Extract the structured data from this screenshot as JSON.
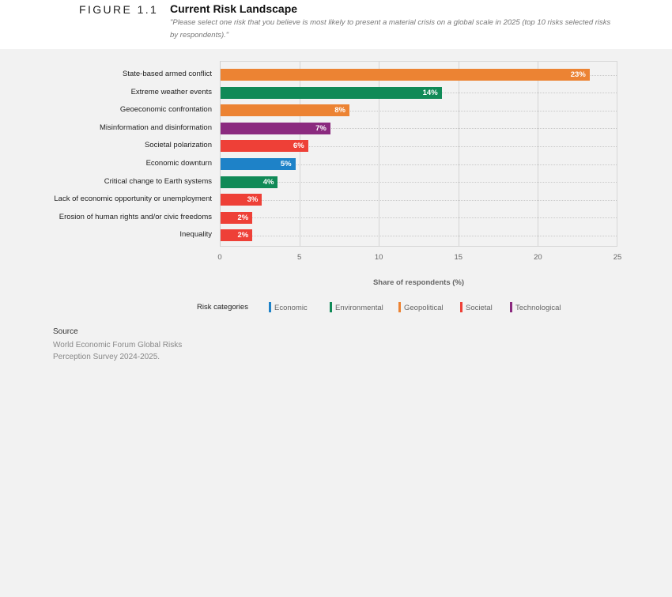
{
  "header": {
    "figure_number": "FIGURE 1.1",
    "title": "Current Risk Landscape",
    "subtitle": "\"Please select one risk that you believe is most likely to present a material crisis on a global scale in 2025 (top 10 risks selected risks by respondents).\""
  },
  "colors": {
    "Economic": "#1e82c8",
    "Environmental": "#108a57",
    "Geopolitical": "#ec8333",
    "Societal": "#ee4037",
    "Technological": "#8b2a7f"
  },
  "chart_data": {
    "type": "bar",
    "orientation": "horizontal",
    "title": "Current Risk Landscape",
    "xlabel": "Share of respondents (%)",
    "ylabel": "",
    "xlim": [
      0,
      25
    ],
    "xticks": [
      "0",
      "5",
      "10",
      "15",
      "20",
      "25"
    ],
    "grid": true,
    "legend_position": "bottom",
    "categories": [
      "State-based armed conflict",
      "Extreme weather events",
      "Geoeconomic confrontation",
      "Misinformation and disinformation",
      "Societal polarization",
      "Economic downturn",
      "Critical change to Earth systems",
      "Lack of economic opportunity or unemployment",
      "Erosion of human rights and/or civic freedoms",
      "Inequality"
    ],
    "values": [
      23.2,
      13.9,
      8.1,
      6.9,
      5.5,
      4.7,
      3.6,
      2.6,
      2.0,
      2.0
    ],
    "data_labels": [
      "23%",
      "14%",
      "8%",
      "7%",
      "6%",
      "5%",
      "4%",
      "3%",
      "2%",
      "2%"
    ],
    "category_group": [
      "Geopolitical",
      "Environmental",
      "Geopolitical",
      "Technological",
      "Societal",
      "Economic",
      "Environmental",
      "Societal",
      "Societal",
      "Societal"
    ],
    "legend": {
      "title": "Risk categories",
      "entries": [
        "Economic",
        "Environmental",
        "Geopolitical",
        "Societal",
        "Technological"
      ]
    }
  },
  "source": {
    "title": "Source",
    "text": "World Economic Forum Global Risks Perception Survey 2024-2025."
  }
}
